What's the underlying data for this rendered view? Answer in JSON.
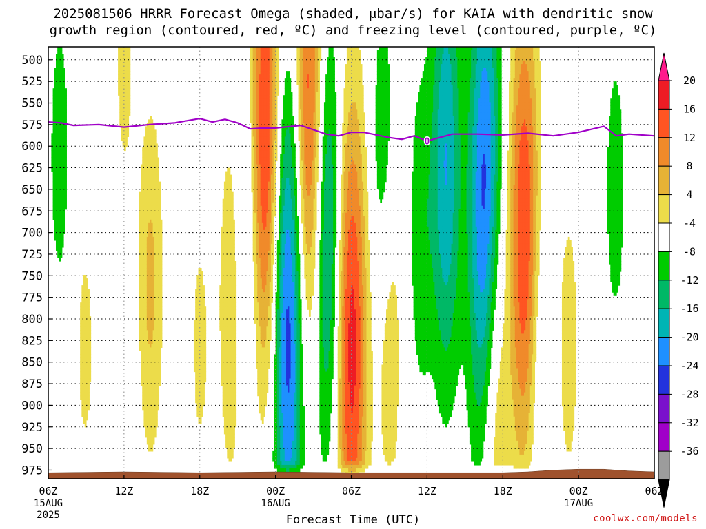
{
  "chart_data": {
    "type": "heatmap",
    "title_line1": "2025081506 HRRR Forecast Omega (shaded, μbar/s) for KAIA with dendritic snow",
    "title_line2": "growth region (contoured, red, ºC) and freezing level (contoured, purple, ºC)",
    "xlabel": "Forecast Time (UTC)",
    "x_ticks": [
      {
        "label": "06Z",
        "sub1": "15AUG",
        "sub2": "2025",
        "hour": 0
      },
      {
        "label": "12Z",
        "sub1": "",
        "sub2": "",
        "hour": 6
      },
      {
        "label": "18Z",
        "sub1": "",
        "sub2": "",
        "hour": 12
      },
      {
        "label": "00Z",
        "sub1": "16AUG",
        "sub2": "",
        "hour": 18
      },
      {
        "label": "06Z",
        "sub1": "",
        "sub2": "",
        "hour": 24
      },
      {
        "label": "12Z",
        "sub1": "",
        "sub2": "",
        "hour": 30
      },
      {
        "label": "18Z",
        "sub1": "",
        "sub2": "",
        "hour": 36
      },
      {
        "label": "00Z",
        "sub1": "17AUG",
        "sub2": "",
        "hour": 42
      },
      {
        "label": "06Z",
        "sub1": "",
        "sub2": "",
        "hour": 48
      }
    ],
    "xlim": [
      0,
      48
    ],
    "y_ticks": [
      500,
      525,
      550,
      575,
      600,
      625,
      650,
      675,
      700,
      725,
      750,
      775,
      800,
      825,
      850,
      875,
      900,
      925,
      950,
      975
    ],
    "ylim": [
      485,
      985
    ],
    "grid": true,
    "colorbar": {
      "labels": [
        "20",
        "16",
        "12",
        "8",
        "4",
        "-4",
        "-8",
        "-12",
        "-16",
        "-20",
        "-24",
        "-28",
        "-32",
        "-36"
      ],
      "levels": [
        20,
        16,
        12,
        8,
        4,
        -4,
        -8,
        -12,
        -16,
        -20,
        -24,
        -28,
        -32,
        -36
      ],
      "colors": [
        "#ff1a8c",
        "#ee1c24",
        "#ff5522",
        "#f08a2a",
        "#e6b236",
        "#ecdc4a",
        "#ffffff",
        "#00cc00",
        "#00b866",
        "#00b4b4",
        "#1e90ff",
        "#2233dd",
        "#7a10cc",
        "#a000c8",
        "#9c9c9c",
        "#000000"
      ]
    },
    "freezing_level": {
      "label": "0",
      "color": "#a000c8",
      "hours": [
        0,
        1,
        2,
        4,
        6,
        8,
        10,
        12,
        13,
        14,
        15,
        16,
        17,
        18,
        20,
        22,
        23,
        24,
        25,
        26,
        27,
        28,
        29,
        30,
        32,
        34,
        36,
        38,
        40,
        42,
        44,
        45,
        46,
        48
      ],
      "pressures": [
        572,
        573,
        576,
        575,
        578,
        575,
        573,
        568,
        572,
        569,
        573,
        580,
        579,
        579,
        576,
        586,
        588,
        584,
        584,
        587,
        590,
        592,
        588,
        594,
        586,
        586,
        587,
        585,
        588,
        584,
        577,
        588,
        586,
        588
      ]
    },
    "terrain": {
      "color": "#a0522d",
      "hours": [
        0,
        6,
        12,
        18,
        24,
        30,
        36,
        38,
        40,
        42,
        44,
        46,
        48
      ],
      "top_pressures": [
        978,
        977,
        978,
        977,
        978,
        978,
        978,
        977,
        975,
        974,
        974,
        976,
        977
      ]
    },
    "omega_features": [
      {
        "type": "updraft",
        "hour": 2.9,
        "pressure": 835,
        "peak": 5
      },
      {
        "type": "updraft",
        "hour": 6.0,
        "pressure": 510,
        "peak": 5
      },
      {
        "type": "updraft",
        "hour": 8.1,
        "pressure": 760,
        "peak": 9
      },
      {
        "type": "updraft",
        "hour": 12.0,
        "pressure": 830,
        "peak": 5
      },
      {
        "type": "updraft",
        "hour": 14.6,
        "pressure": 780,
        "peak": 10
      },
      {
        "type": "updraft",
        "hour": 17.2,
        "pressure": 600,
        "peak": 22
      },
      {
        "type": "updraft",
        "hour": 20.7,
        "pressure": 580,
        "peak": 22
      },
      {
        "type": "updraft",
        "hour": 24.0,
        "pressure": 830,
        "peak": 22
      },
      {
        "type": "updraft",
        "hour": 27.0,
        "pressure": 820,
        "peak": 8
      },
      {
        "type": "updraft",
        "hour": 35.3,
        "pressure": 890,
        "peak": 12
      },
      {
        "type": "updraft",
        "hour": 37.7,
        "pressure": 700,
        "peak": 20
      },
      {
        "type": "updraft",
        "hour": 41.2,
        "pressure": 830,
        "peak": 6
      },
      {
        "type": "downdraft",
        "hour": 0.9,
        "pressure": 608,
        "peak": -6
      },
      {
        "type": "downdraft",
        "hour": 15.6,
        "pressure": 720,
        "peak": -10
      },
      {
        "type": "downdraft",
        "hour": 19.0,
        "pressure": 800,
        "peak": -24
      },
      {
        "type": "downdraft",
        "hour": 22.0,
        "pressure": 700,
        "peak": -18
      },
      {
        "type": "downdraft",
        "hour": 26.5,
        "pressure": 620,
        "peak": -8
      },
      {
        "type": "downdraft",
        "hour": 29.5,
        "pressure": 700,
        "peak": -7
      },
      {
        "type": "downdraft",
        "hour": 31.5,
        "pressure": 620,
        "peak": -16
      },
      {
        "type": "downdraft",
        "hour": 34.6,
        "pressure": 680,
        "peak": -23
      },
      {
        "type": "downdraft",
        "hour": 39.0,
        "pressure": 860,
        "peak": -6
      },
      {
        "type": "downdraft",
        "hour": 44.9,
        "pressure": 650,
        "peak": -6
      }
    ]
  },
  "watermark": "coolwx.com/models"
}
